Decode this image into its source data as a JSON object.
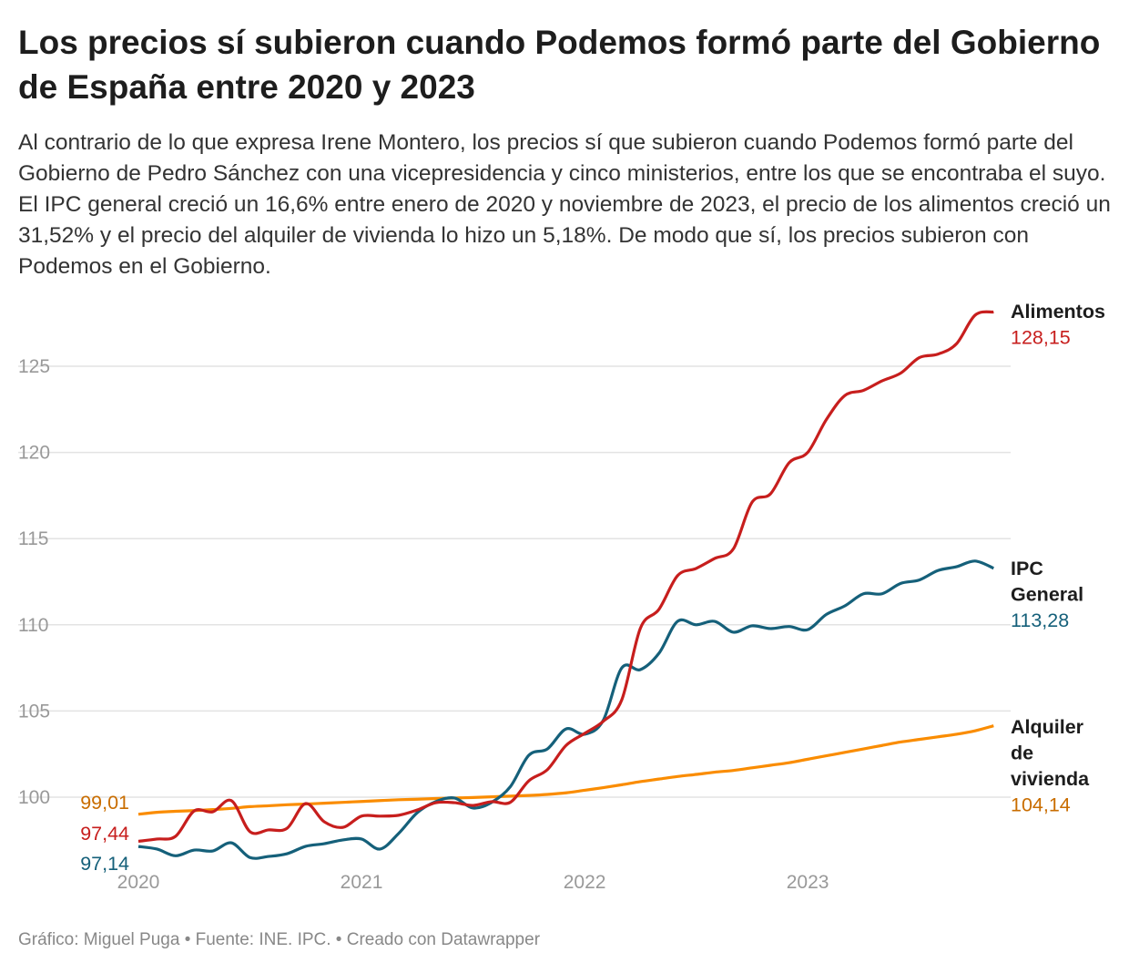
{
  "title": "Los precios sí subieron cuando Podemos formó parte del Gobierno de España entre 2020 y 2023",
  "subtitle": "Al contrario de lo que expresa Irene Montero, los precios sí que subieron cuando Podemos formó parte del Gobierno de Pedro Sánchez con una vicepresidencia y cinco ministerios, entre los que se encontraba el suyo. El IPC general creció un 16,6% entre enero de 2020 y noviembre de 2023, el precio de los alimentos creció un 31,52% y el precio del alquiler de vivienda lo hizo un 5,18%. De modo que sí, los precios subieron con Podemos en el Gobierno.",
  "footer": "Gráfico: Miguel Puga • Fuente: INE. IPC. • Creado con Datawrapper",
  "chart_data": {
    "type": "line",
    "x_start": "2020-01",
    "x_end": "2023-11",
    "x_ticks": [
      "2020",
      "2021",
      "2022",
      "2023"
    ],
    "y_ticks": [
      "100",
      "105",
      "110",
      "115",
      "120",
      "125"
    ],
    "ylim": [
      96.5,
      128.2
    ],
    "grid": true,
    "series": [
      {
        "name": "Alimentos",
        "color": "#c71e1d",
        "label_color": "#c71e1d",
        "start_label": "97,44",
        "end_label": "128,15",
        "values": [
          97.44,
          97.57,
          97.73,
          99.2,
          99.15,
          99.8,
          98.0,
          98.1,
          98.2,
          99.63,
          98.57,
          98.25,
          98.9,
          98.9,
          98.95,
          99.26,
          99.68,
          99.68,
          99.52,
          99.74,
          99.7,
          100.95,
          101.6,
          103.0,
          103.7,
          104.4,
          105.65,
          109.8,
          110.9,
          112.85,
          113.27,
          113.85,
          114.4,
          117.1,
          117.6,
          119.4,
          120.0,
          121.9,
          123.3,
          123.6,
          124.15,
          124.6,
          125.5,
          125.7,
          126.3,
          127.96,
          128.15
        ]
      },
      {
        "name": "IPC General",
        "color": "#15607a",
        "label_color": "#15607a",
        "start_label": "97,14",
        "end_label": "113,28",
        "values": [
          97.14,
          96.99,
          96.6,
          96.93,
          96.88,
          97.35,
          96.5,
          96.56,
          96.72,
          97.15,
          97.3,
          97.52,
          97.57,
          96.99,
          97.9,
          99.1,
          99.74,
          99.95,
          99.37,
          99.7,
          100.6,
          102.43,
          102.8,
          103.96,
          103.65,
          104.45,
          107.5,
          107.4,
          108.35,
          110.2,
          110.0,
          110.2,
          109.57,
          109.94,
          109.78,
          109.9,
          109.72,
          110.6,
          111.1,
          111.8,
          111.8,
          112.4,
          112.6,
          113.15,
          113.37,
          113.7,
          113.28
        ]
      },
      {
        "name": "Alquiler de vivienda",
        "color": "#fa8c00",
        "label_color": "#c96d00",
        "start_label": "99,01",
        "end_label": "104,14",
        "values": [
          99.01,
          99.12,
          99.18,
          99.22,
          99.28,
          99.35,
          99.45,
          99.5,
          99.56,
          99.6,
          99.65,
          99.7,
          99.75,
          99.8,
          99.85,
          99.88,
          99.92,
          99.95,
          99.98,
          100.02,
          100.06,
          100.1,
          100.16,
          100.25,
          100.4,
          100.55,
          100.72,
          100.9,
          101.05,
          101.2,
          101.32,
          101.45,
          101.55,
          101.7,
          101.85,
          102.0,
          102.2,
          102.4,
          102.6,
          102.8,
          103.0,
          103.2,
          103.35,
          103.5,
          103.65,
          103.85,
          104.14
        ]
      }
    ]
  }
}
